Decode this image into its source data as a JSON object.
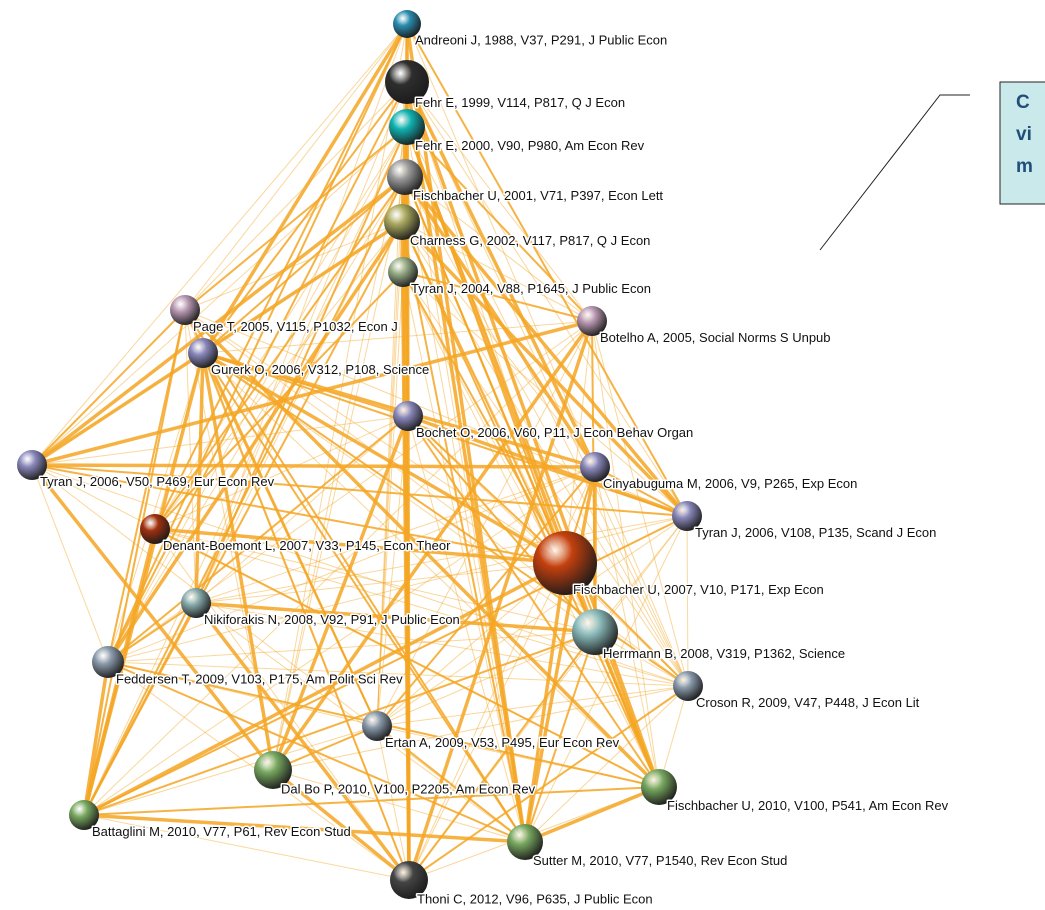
{
  "nodes": [
    {
      "label": "Andreoni J, 1988, V37, P291, J Public Econ"
    },
    {
      "label": "Fehr E, 1999, V114, P817, Q J Econ"
    },
    {
      "label": "Fehr E, 2000, V90, P980, Am Econ Rev"
    },
    {
      "label": "Fischbacher U, 2001, V71, P397, Econ Lett"
    },
    {
      "label": "Charness G, 2002, V117, P817, Q J Econ"
    },
    {
      "label": "Tyran J, 2004, V88, P1645, J Public Econ"
    },
    {
      "label": "Page T, 2005, V115, P1032, Econ J"
    },
    {
      "label": "Botelho A, 2005, Social Norms S Unpub"
    },
    {
      "label": "Gurerk O, 2006, V312, P108, Science"
    },
    {
      "label": "Bochet O, 2006, V60, P11, J Econ Behav Organ"
    },
    {
      "label": "Tyran J, 2006, V50, P469, Eur Econ Rev"
    },
    {
      "label": "Cinyabuguma M, 2006, V9, P265, Exp Econ"
    },
    {
      "label": "Tyran J, 2006, V108, P135, Scand J Econ"
    },
    {
      "label": "Denant-Boemont L, 2007, V33, P145, Econ Theor"
    },
    {
      "label": "Fischbacher U, 2007, V10, P171, Exp Econ"
    },
    {
      "label": "Nikiforakis N, 2008, V92, P91, J Public Econ"
    },
    {
      "label": "Herrmann B, 2008, V319, P1362, Science"
    },
    {
      "label": "Feddersen T, 2009, V103, P175, Am Polit Sci Rev"
    },
    {
      "label": "Croson R, 2009, V47, P448, J Econ Lit"
    },
    {
      "label": "Ertan A, 2009, V53, P495, Eur Econ Rev"
    },
    {
      "label": "Dal Bo P, 2010, V100, P2205, Am Econ Rev"
    },
    {
      "label": "Fischbacher U, 2010, V100, P541, Am Econ Rev"
    },
    {
      "label": "Battaglini M, 2010, V77, P61, Rev Econ Stud"
    },
    {
      "label": "Sutter M, 2010, V77, P1540, Rev Econ Stud"
    },
    {
      "label": "Thoni C, 2012, V96, P635, J Public Econ"
    }
  ],
  "callout": {
    "lines": [
      "C",
      "vi",
      "m"
    ]
  }
}
